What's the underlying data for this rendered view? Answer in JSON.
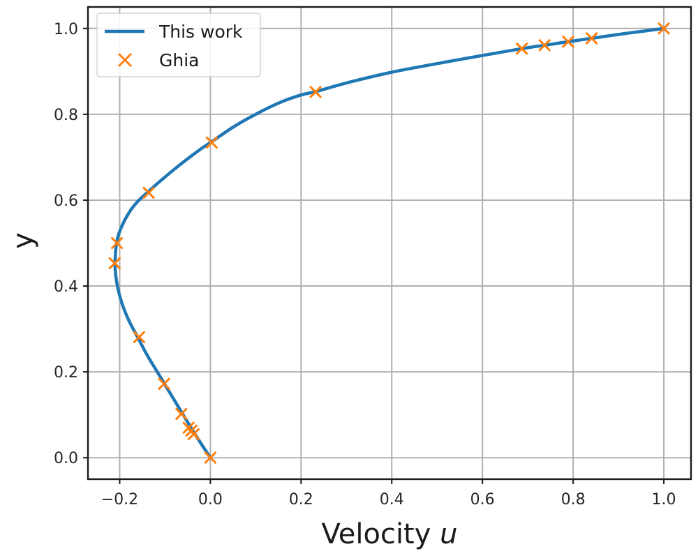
{
  "chart_data": {
    "type": "line",
    "xlabel": "Velocity u",
    "xlabel_parts": {
      "text": "Velocity ",
      "var": "u"
    },
    "ylabel": "y",
    "xlim": [
      -0.27,
      1.06
    ],
    "ylim": [
      -0.05,
      1.05
    ],
    "xticks": [
      -0.2,
      0.0,
      0.2,
      0.4,
      0.6,
      0.8,
      1.0
    ],
    "xtick_labels": [
      "−0.2",
      "0.0",
      "0.2",
      "0.4",
      "0.6",
      "0.8",
      "1.0"
    ],
    "yticks": [
      0.0,
      0.2,
      0.4,
      0.6,
      0.8,
      1.0
    ],
    "ytick_labels": [
      "0.0",
      "0.2",
      "0.4",
      "0.6",
      "0.8",
      "1.0"
    ],
    "grid": true,
    "legend_position": "top-left",
    "series": [
      {
        "name": "This work",
        "style": "line",
        "color": "#1f77b4",
        "x": [
          0.0,
          -0.02,
          -0.04,
          -0.06,
          -0.08,
          -0.1,
          -0.12,
          -0.14,
          -0.16,
          -0.18,
          -0.195,
          -0.205,
          -0.21,
          -0.209,
          -0.205,
          -0.195,
          -0.18,
          -0.162,
          -0.14,
          -0.11,
          -0.07,
          -0.02,
          0.0,
          0.05,
          0.1,
          0.15,
          0.2,
          0.233,
          0.3,
          0.4,
          0.5,
          0.6,
          0.687,
          0.738,
          0.788,
          0.841,
          0.9,
          0.95,
          1.0
        ],
        "y": [
          0.0,
          0.032,
          0.065,
          0.1,
          0.135,
          0.17,
          0.205,
          0.24,
          0.28,
          0.32,
          0.36,
          0.4,
          0.44,
          0.48,
          0.51,
          0.54,
          0.57,
          0.595,
          0.617,
          0.645,
          0.68,
          0.72,
          0.734,
          0.77,
          0.8,
          0.826,
          0.845,
          0.853,
          0.873,
          0.898,
          0.918,
          0.937,
          0.953,
          0.961,
          0.969,
          0.977,
          0.986,
          0.993,
          1.0
        ]
      },
      {
        "name": "Ghia",
        "style": "marker-x",
        "color": "#ff7f0e",
        "x": [
          0.0,
          -0.037,
          -0.042,
          -0.048,
          -0.064,
          -0.102,
          -0.157,
          -0.211,
          -0.206,
          -0.136,
          0.003,
          0.232,
          0.687,
          0.737,
          0.789,
          0.841,
          1.0
        ],
        "y": [
          0.0,
          0.055,
          0.063,
          0.07,
          0.102,
          0.172,
          0.281,
          0.453,
          0.5,
          0.617,
          0.734,
          0.852,
          0.953,
          0.961,
          0.969,
          0.977,
          1.0
        ]
      }
    ]
  }
}
